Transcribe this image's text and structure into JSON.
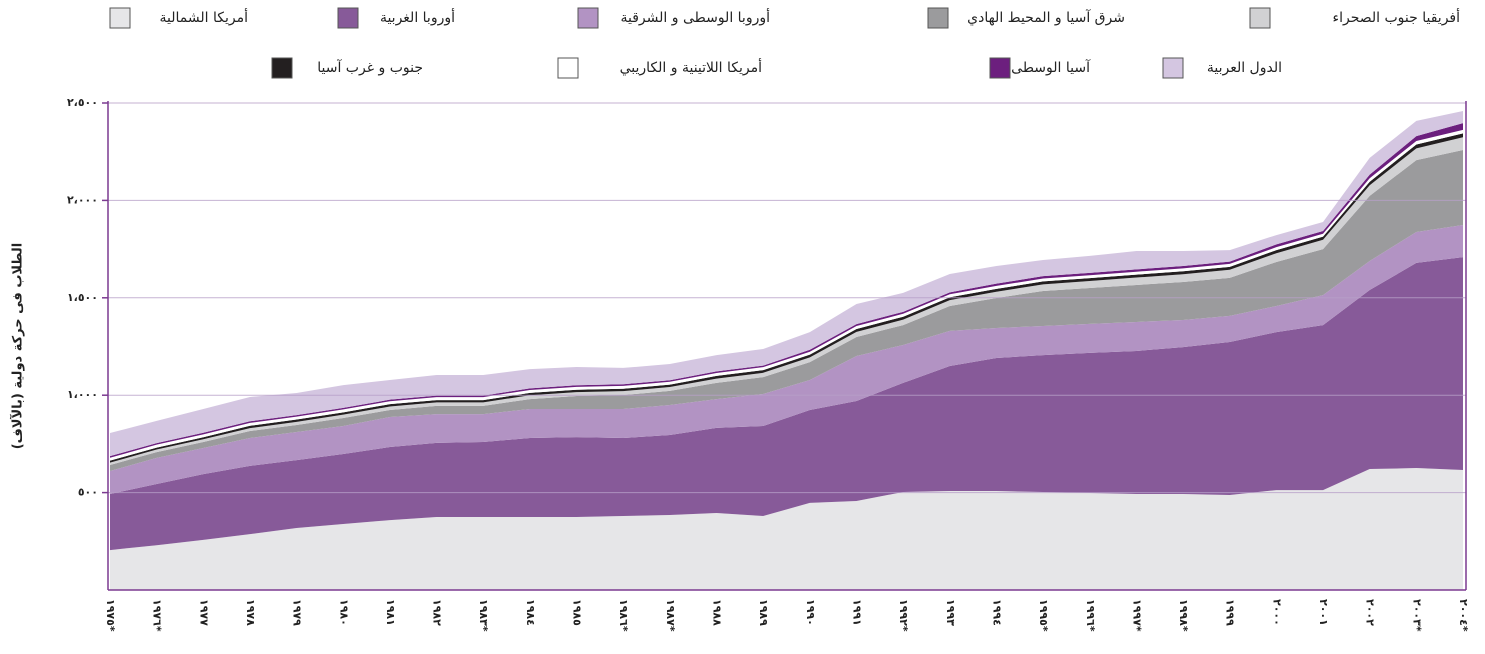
{
  "chart_data": {
    "type": "stacked_area",
    "y_label": "الطلاب فى حركة دولية (بالآلاف)",
    "categories": [
      "١٩٧٥*",
      "١٩٧٦*",
      "١٩٧٧",
      "١٩٧٨",
      "١٩٧٩",
      "١٩٨٠",
      "١٩٨١",
      "١٩٨٢",
      "١٩٨٣*",
      "١٩٨٤",
      "١٩٨٥",
      "١٩٨٦*",
      "١٩٨٧*",
      "١٩٨٨",
      "١٩٨٩",
      "١٩٩٠",
      "١٩٩١",
      "١٩٩٢*",
      "١٩٩٣",
      "١٩٩٤",
      "١٩٩٥*",
      "١٩٩٦*",
      "١٩٩٧*",
      "١٩٩٨*",
      "١٩٩٩",
      "٢٠٠٠",
      "٢٠٠١",
      "٢٠٠٢",
      "٢٠٠٣*",
      "٢٠٠٤*"
    ],
    "ylim": [
      0,
      2500
    ],
    "yticks": [
      {
        "value": 500,
        "label": "٥٠٠"
      },
      {
        "value": 1000,
        "label": "١،٠٠٠"
      },
      {
        "value": 1500,
        "label": "١،٥٠٠"
      },
      {
        "value": 2000,
        "label": "٢،٠٠٠"
      },
      {
        "value": 2500,
        "label": "٢،٥٠٠"
      }
    ],
    "grid": true,
    "series": [
      {
        "name": "أمريكا الشمالية",
        "color": "#e6e6e8",
        "values": [
          205,
          230,
          257,
          287,
          318,
          339,
          359,
          375,
          375,
          375,
          375,
          380,
          385,
          395,
          380,
          447,
          457,
          503,
          508,
          508,
          503,
          498,
          493,
          493,
          488,
          513,
          513,
          621,
          626,
          616
        ]
      },
      {
        "name": "أوروبا الغربية",
        "color": "#875a99",
        "values": [
          288,
          314,
          338,
          350,
          349,
          359,
          375,
          380,
          385,
          405,
          410,
          400,
          411,
          437,
          462,
          477,
          513,
          560,
          642,
          683,
          703,
          719,
          734,
          754,
          785,
          811,
          847,
          919,
          1053,
          1093
        ]
      },
      {
        "name": "أوروبا الوسطى و الشرقية",
        "color": "#b293c3",
        "values": [
          118,
          134,
          134,
          143,
          144,
          144,
          154,
          148,
          143,
          149,
          144,
          149,
          154,
          148,
          164,
          154,
          231,
          195,
          180,
          154,
          149,
          149,
          149,
          139,
          134,
          134,
          154,
          149,
          159,
          165
        ]
      },
      {
        "name": "شرق آسيا و المحيط الهادي",
        "color": "#9b9b9d",
        "values": [
          31,
          30,
          31,
          36,
          36,
          41,
          36,
          42,
          42,
          51,
          67,
          72,
          72,
          83,
          87,
          92,
          98,
          102,
          128,
          154,
          180,
          184,
          190,
          195,
          195,
          226,
          236,
          334,
          369,
          385
        ]
      },
      {
        "name": "أفريقيا جنوب الصحراء",
        "color": "#d1d1d3",
        "values": [
          12,
          13,
          14,
          15,
          16,
          17,
          18,
          18,
          18,
          20,
          20,
          20,
          20,
          22,
          22,
          24,
          26,
          28,
          30,
          32,
          34,
          36,
          38,
          40,
          42,
          45,
          48,
          55,
          60,
          65
        ]
      },
      {
        "name": "جنوب و غرب آسيا",
        "color": "#231f20",
        "values": [
          10,
          10,
          10,
          12,
          12,
          12,
          12,
          12,
          12,
          12,
          12,
          12,
          12,
          14,
          14,
          14,
          15,
          15,
          15,
          15,
          15,
          15,
          15,
          15,
          15,
          16,
          16,
          18,
          20,
          20
        ]
      },
      {
        "name": "أمريكا اللاتينية و الكاريبي",
        "color": "#ffffff",
        "values": [
          15,
          15,
          15,
          15,
          15,
          15,
          15,
          15,
          15,
          15,
          15,
          15,
          15,
          15,
          15,
          15,
          15,
          15,
          15,
          15,
          15,
          15,
          15,
          15,
          15,
          15,
          15,
          18,
          18,
          18
        ]
      },
      {
        "name": "آسيا الوسطى",
        "color": "#6c1f7e",
        "values": [
          8,
          8,
          8,
          8,
          8,
          8,
          8,
          8,
          8,
          8,
          8,
          8,
          8,
          8,
          8,
          10,
          10,
          10,
          10,
          12,
          12,
          12,
          12,
          12,
          12,
          14,
          14,
          18,
          25,
          35
        ]
      },
      {
        "name": "الدول العربية",
        "color": "#d4c6e1",
        "values": [
          119,
          114,
          122,
          125,
          113,
          117,
          101,
          106,
          106,
          99,
          94,
          84,
          83,
          84,
          85,
          91,
          103,
          97,
          94,
          90,
          83,
          87,
          94,
          77,
          59,
          48,
          46,
          86,
          78,
          62
        ]
      }
    ]
  }
}
